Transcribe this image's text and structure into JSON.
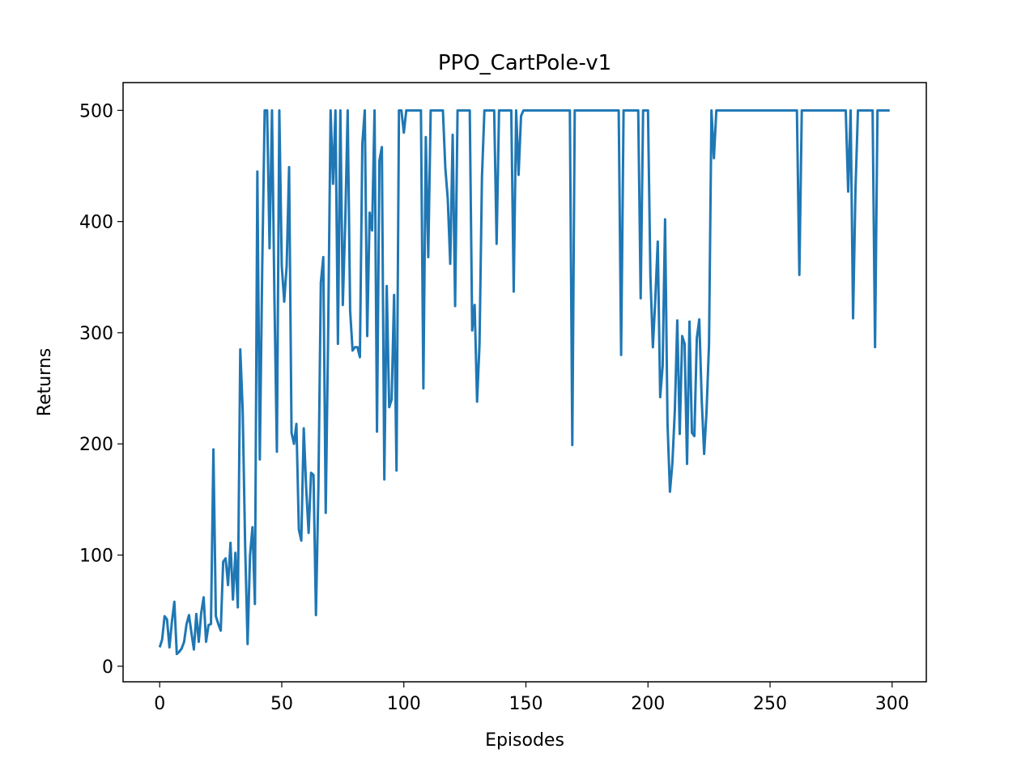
{
  "chart_data": {
    "type": "line",
    "title": "PPO_CartPole-v1",
    "xlabel": "Episodes",
    "ylabel": "Returns",
    "color": "#1f77b4",
    "xlim": [
      -15,
      314
    ],
    "ylim": [
      -14,
      525
    ],
    "xticks": [
      0,
      50,
      100,
      150,
      200,
      250,
      300
    ],
    "yticks": [
      0,
      100,
      200,
      300,
      400,
      500
    ],
    "x": [
      0,
      1,
      2,
      3,
      4,
      5,
      6,
      7,
      8,
      9,
      10,
      11,
      12,
      13,
      14,
      15,
      16,
      17,
      18,
      19,
      20,
      21,
      22,
      23,
      24,
      25,
      26,
      27,
      28,
      29,
      30,
      31,
      32,
      33,
      34,
      35,
      36,
      37,
      38,
      39,
      40,
      41,
      42,
      43,
      44,
      45,
      46,
      47,
      48,
      49,
      50,
      51,
      52,
      53,
      54,
      55,
      56,
      57,
      58,
      59,
      60,
      61,
      62,
      63,
      64,
      65,
      66,
      67,
      68,
      69,
      70,
      71,
      72,
      73,
      74,
      75,
      76,
      77,
      78,
      79,
      80,
      81,
      82,
      83,
      84,
      85,
      86,
      87,
      88,
      89,
      90,
      91,
      92,
      93,
      94,
      95,
      96,
      97,
      98,
      99,
      100,
      101,
      102,
      103,
      104,
      105,
      106,
      107,
      108,
      109,
      110,
      111,
      112,
      113,
      114,
      115,
      116,
      117,
      118,
      119,
      120,
      121,
      122,
      123,
      124,
      125,
      126,
      127,
      128,
      129,
      130,
      131,
      132,
      133,
      134,
      135,
      136,
      137,
      138,
      139,
      140,
      141,
      142,
      143,
      144,
      145,
      146,
      147,
      148,
      149,
      150,
      151,
      152,
      153,
      154,
      155,
      156,
      157,
      158,
      159,
      160,
      161,
      162,
      163,
      164,
      165,
      166,
      167,
      168,
      169,
      170,
      171,
      172,
      173,
      174,
      175,
      176,
      177,
      178,
      179,
      180,
      181,
      182,
      183,
      184,
      185,
      186,
      187,
      188,
      189,
      190,
      191,
      192,
      193,
      194,
      195,
      196,
      197,
      198,
      199,
      200,
      201,
      202,
      203,
      204,
      205,
      206,
      207,
      208,
      209,
      210,
      211,
      212,
      213,
      214,
      215,
      216,
      217,
      218,
      219,
      220,
      221,
      222,
      223,
      224,
      225,
      226,
      227,
      228,
      229,
      230,
      231,
      232,
      233,
      234,
      235,
      236,
      237,
      238,
      239,
      240,
      241,
      242,
      243,
      244,
      245,
      246,
      247,
      248,
      249,
      250,
      251,
      252,
      253,
      254,
      255,
      256,
      257,
      258,
      259,
      260,
      261,
      262,
      263,
      264,
      265,
      266,
      267,
      268,
      269,
      270,
      271,
      272,
      273,
      274,
      275,
      276,
      277,
      278,
      279,
      280,
      281,
      282,
      283,
      284,
      285,
      286,
      287,
      288,
      289,
      290,
      291,
      292,
      293,
      294,
      295,
      296,
      297,
      298,
      299
    ],
    "values": [
      17,
      24,
      45,
      42,
      17,
      40,
      58,
      11,
      13,
      16,
      22,
      38,
      46,
      30,
      15,
      47,
      22,
      48,
      62,
      22,
      37,
      38,
      195,
      45,
      38,
      32,
      94,
      97,
      73,
      111,
      60,
      102,
      53,
      285,
      230,
      108,
      20,
      100,
      125,
      56,
      445,
      186,
      360,
      500,
      500,
      376,
      500,
      330,
      193,
      500,
      360,
      328,
      360,
      449,
      210,
      200,
      218,
      123,
      113,
      214,
      160,
      120,
      174,
      172,
      46,
      160,
      345,
      368,
      138,
      300,
      500,
      434,
      500,
      290,
      500,
      325,
      400,
      500,
      320,
      284,
      287,
      287,
      278,
      470,
      500,
      297,
      408,
      392,
      500,
      211,
      455,
      467,
      168,
      342,
      233,
      240,
      334,
      176,
      500,
      500,
      480,
      500,
      500,
      500,
      500,
      500,
      500,
      500,
      250,
      476,
      368,
      500,
      500,
      500,
      500,
      500,
      500,
      448,
      420,
      362,
      478,
      324,
      500,
      500,
      500,
      500,
      500,
      500,
      302,
      325,
      238,
      290,
      440,
      500,
      500,
      500,
      500,
      500,
      380,
      500,
      500,
      500,
      500,
      500,
      500,
      337,
      500,
      442,
      495,
      500,
      500,
      500,
      500,
      500,
      500,
      500,
      500,
      500,
      500,
      500,
      500,
      500,
      500,
      500,
      500,
      500,
      500,
      500,
      500,
      199,
      500,
      500,
      500,
      500,
      500,
      500,
      500,
      500,
      500,
      500,
      500,
      500,
      500,
      500,
      500,
      500,
      500,
      500,
      500,
      280,
      500,
      500,
      500,
      500,
      500,
      500,
      500,
      331,
      500,
      500,
      500,
      350,
      287,
      330,
      382,
      242,
      270,
      402,
      218,
      157,
      183,
      230,
      311,
      209,
      297,
      290,
      182,
      310,
      210,
      207,
      295,
      312,
      240,
      191,
      230,
      290,
      500,
      457,
      500,
      500,
      500,
      500,
      500,
      500,
      500,
      500,
      500,
      500,
      500,
      500,
      500,
      500,
      500,
      500,
      500,
      500,
      500,
      500,
      500,
      500,
      500,
      500,
      500,
      500,
      500,
      500,
      500,
      500,
      500,
      500,
      500,
      500,
      352,
      500,
      500,
      500,
      500,
      500,
      500,
      500,
      500,
      500,
      500,
      500,
      500,
      500,
      500,
      500,
      500,
      500,
      500,
      500,
      427,
      500,
      313,
      430,
      500,
      500,
      500,
      500,
      500,
      500,
      500,
      287,
      500,
      500,
      500,
      500,
      500,
      500
    ]
  }
}
